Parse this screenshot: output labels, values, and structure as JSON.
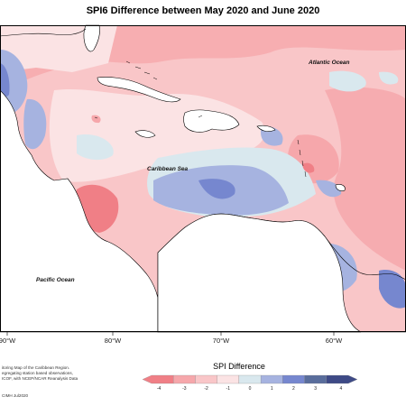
{
  "title": "SPI6 Difference between May 2020 and June 2020",
  "map": {
    "ocean_labels": [
      "Atlantic Ocean",
      "Caribbean Sea",
      "Pacific Ocean"
    ],
    "longitude_ticks": [
      "90°W",
      "80°W",
      "70°W",
      "60°W"
    ]
  },
  "legend": {
    "title": "SPI Difference",
    "tick_labels": [
      "-4",
      "-3",
      "-2",
      "-1",
      "0",
      "1",
      "2",
      "3",
      "4"
    ],
    "colors": [
      "#f07f86",
      "#f6a7ab",
      "#f9c6c8",
      "#fbe3e4",
      "#d9e8ee",
      "#a6b3e0",
      "#7687cf",
      "#596d9c",
      "#3e4a86"
    ]
  },
  "credit_lines": [
    "itoring Map of the Caribbean Region.",
    "egregating station based observations,",
    "ICOF, with NCEP/NCAR Reanalysis Data"
  ],
  "copyright": "CIMH Jul2020",
  "colors": {
    "strong_dry": "#f07f86",
    "moderate_dry": "#f6a7ab",
    "mild_dry": "#f9c6c8",
    "slight_dry": "#fbe3e4",
    "near_normal": "#d9e8ee",
    "slight_wet": "#a6b3e0",
    "moderate_wet": "#7687cf",
    "land": "#ffffff",
    "coastline": "#000000"
  }
}
